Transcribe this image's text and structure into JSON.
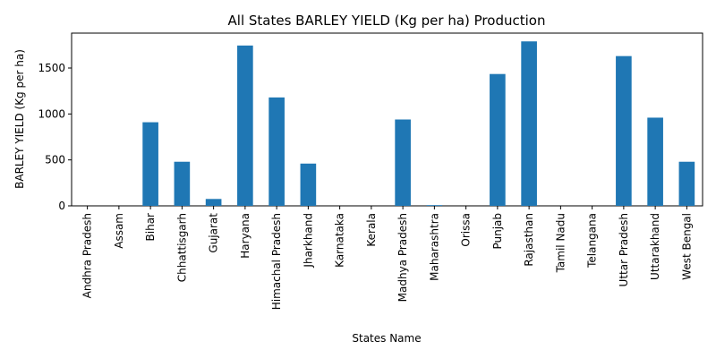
{
  "chart_data": {
    "type": "bar",
    "title": "All States BARLEY YIELD (Kg per ha) Production",
    "xlabel": "States Name",
    "ylabel": "BARLEY YIELD (Kg per ha)",
    "categories": [
      "Andhra Pradesh",
      "Assam",
      "Bihar",
      "Chhattisgarh",
      "Gujarat",
      "Haryana",
      "Himachal Pradesh",
      "Jharkhand",
      "Karnataka",
      "Kerala",
      "Madhya Pradesh",
      "Maharashtra",
      "Orissa",
      "Punjab",
      "Rajasthan",
      "Tamil Nadu",
      "Telangana",
      "Uttar Pradesh",
      "Uttarakhand",
      "West Bengal"
    ],
    "values": [
      0,
      0,
      910,
      480,
      75,
      1745,
      1180,
      460,
      0,
      0,
      940,
      8,
      0,
      1435,
      1790,
      0,
      0,
      1630,
      960,
      480
    ],
    "ylim": [
      0,
      1880
    ],
    "yticks": [
      0,
      500,
      1000,
      1500
    ],
    "grid": false,
    "colors": {
      "bar": "#1f77b4",
      "axes": "#000000"
    }
  }
}
